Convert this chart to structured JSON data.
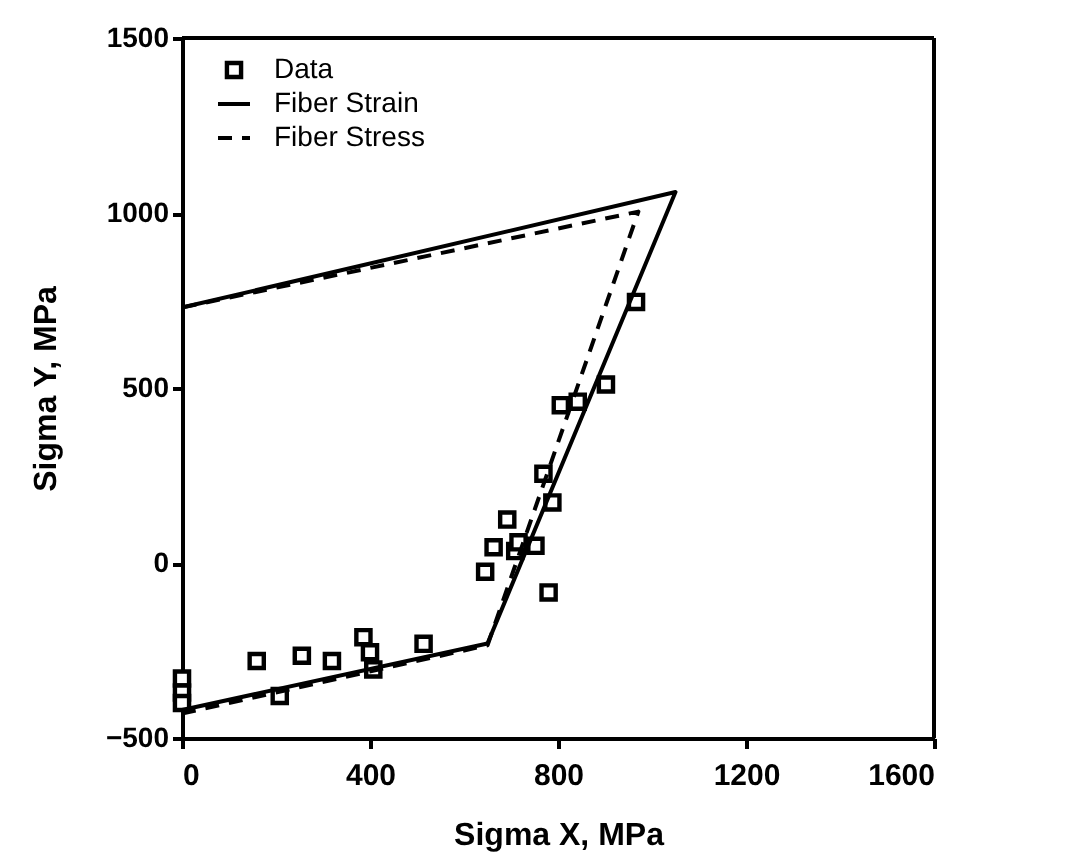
{
  "chart_data": {
    "type": "scatter",
    "xlabel": "Sigma X, MPa",
    "ylabel": "Sigma Y, MPa",
    "xlim": [
      0,
      1600
    ],
    "xticks": [
      0,
      400,
      800,
      1200,
      1600
    ],
    "ylim": [
      -500,
      1500
    ],
    "yticks": [
      -500,
      0,
      500,
      1000,
      1500
    ],
    "grid": false,
    "legend": "top left",
    "series": [
      {
        "name": "Data",
        "marker": "square",
        "color": "#000000",
        "x": [
          0,
          0,
          0,
          159,
          208,
          255,
          319,
          386,
          400,
          407,
          514,
          645,
          663,
          692,
          709,
          716,
          752,
          780,
          769,
          788,
          806,
          842,
          902,
          966
        ],
        "values": [
          -330,
          -370,
          -400,
          -280,
          -380,
          -265,
          -280,
          -212,
          -255,
          -304,
          -231,
          -25,
          45,
          124,
          34,
          59,
          49,
          -84,
          255,
          173,
          451,
          461,
          510,
          746
        ]
      },
      {
        "name": "Fiber Strain",
        "type": "line",
        "line_style": "solid",
        "color": "#000000",
        "x": [
          0,
          650,
          1050,
          0
        ],
        "values": [
          -420,
          -230,
          1060,
          730
        ]
      },
      {
        "name": "Fiber Stress",
        "type": "line",
        "line_style": "dashed",
        "color": "#000000",
        "x": [
          0,
          650,
          971,
          0
        ],
        "values": [
          -430,
          -235,
          1004,
          730
        ]
      }
    ]
  }
}
